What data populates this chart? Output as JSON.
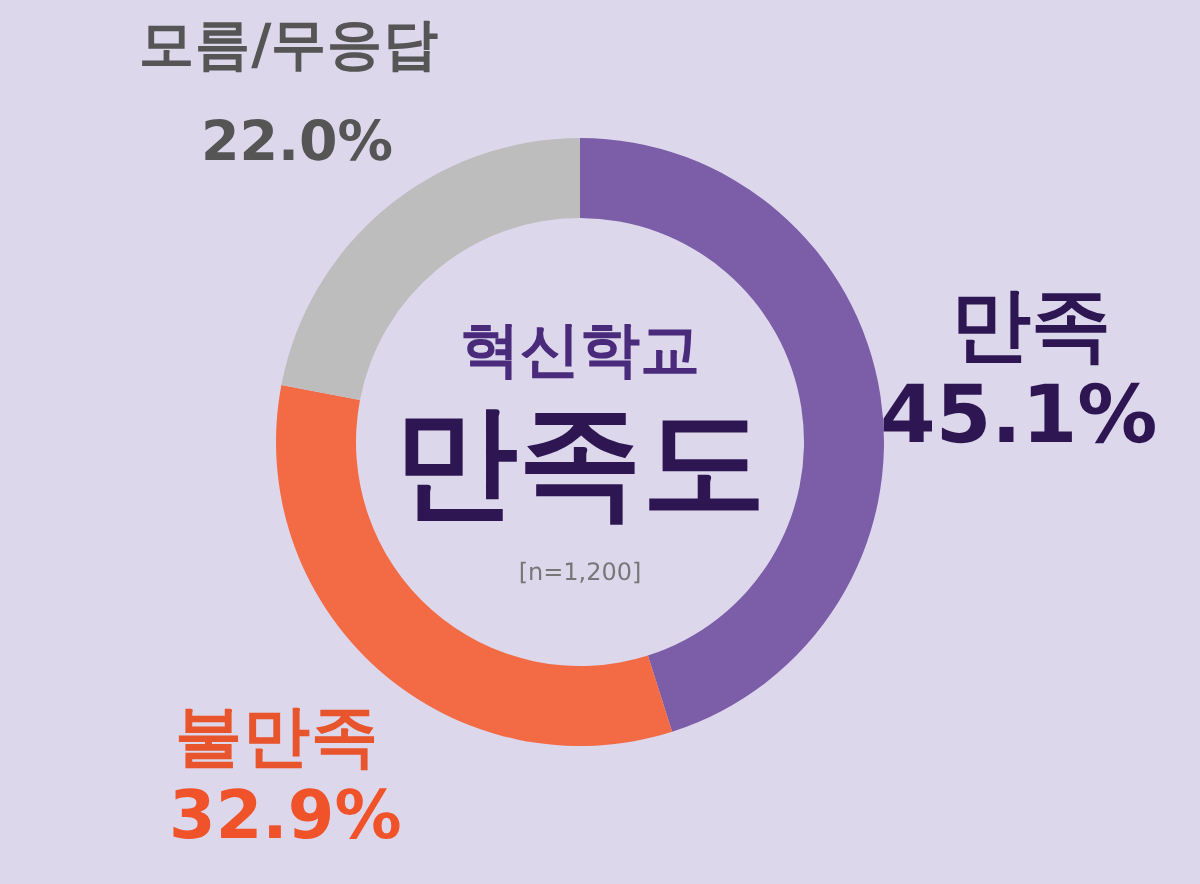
{
  "chart_data": {
    "type": "donut",
    "title": "혁신학교",
    "subtitle": "만족도",
    "annotations": [
      "[n=1,200]"
    ],
    "categories": [
      "만족",
      "불만족",
      "모름/무응답"
    ],
    "values": [
      45.1,
      32.9,
      22.0
    ],
    "value_labels": [
      "45.1%",
      "32.9%",
      "22.0%"
    ],
    "colors": [
      "#7b5ea7",
      "#f26b45",
      "#bdbdbd"
    ]
  }
}
